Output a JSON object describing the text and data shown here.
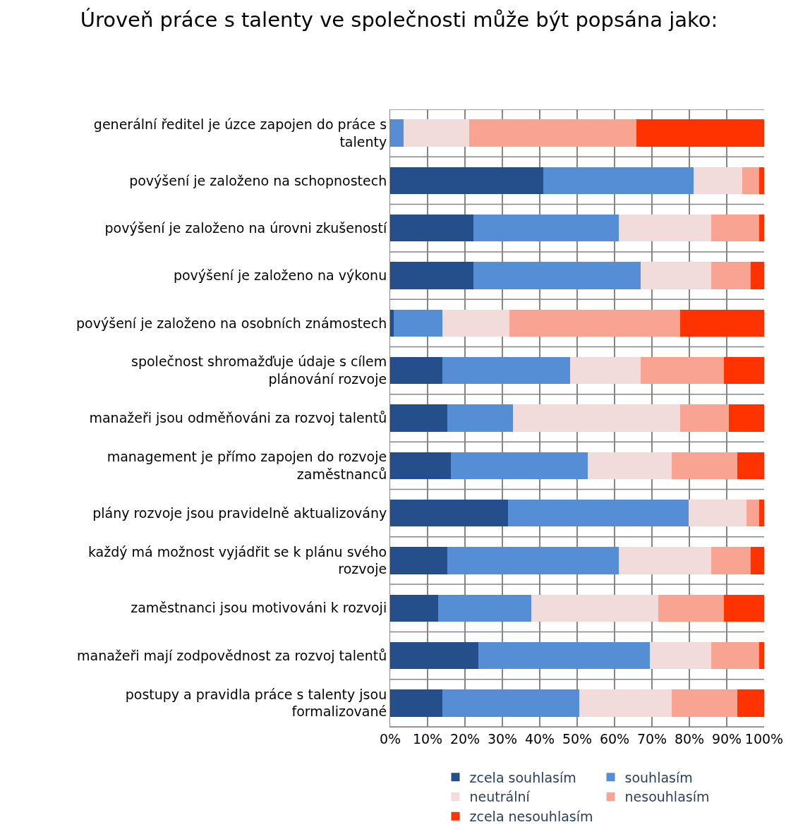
{
  "chart_data": {
    "type": "bar",
    "orientation": "horizontal",
    "stacked": true,
    "title": "Úroveň práce s talenty ve společnosti může být popsána jako:",
    "categories": [
      "generální ředitel je úzce zapojen do práce s talenty",
      "povýšení je založeno na schopnostech",
      "povýšení je založeno na úrovni zkušeností",
      "povýšení je založeno na výkonu",
      "povýšení je založeno na osobních známostech",
      "společnost shromažďuje údaje s cílem plánování rozvoje",
      "manažeři jsou odměňováni za rozvoj talentů",
      "management je přímo zapojen do rozvoje zaměstnanců",
      "plány rozvoje jsou pravidelně aktualizovány",
      "každý má možnost vyjádřit se k plánu svého rozvoje",
      "zaměstnanci jsou motivováni k rozvoji",
      "manažeři mají zodpovědnost za rozvoj talentů",
      "postupy a pravidla práce s talenty jsou formalizované"
    ],
    "series": [
      {
        "name": "zcela souhlasím",
        "color": "#254f8a",
        "values": [
          0,
          41,
          22.3,
          22.3,
          1,
          14,
          15.2,
          16.3,
          31.6,
          15.2,
          12.9,
          23.5,
          14
        ]
      },
      {
        "name": "souhlasím",
        "color": "#558ed5",
        "values": [
          3.5,
          40.1,
          38.8,
          44.6,
          13,
          34.2,
          17.7,
          36.5,
          48.3,
          45.9,
          24.8,
          45.9,
          36.5
        ]
      },
      {
        "name": "neutrální",
        "color": "#f2dcdb",
        "values": [
          17.6,
          13,
          24.7,
          18.9,
          17.8,
          18.7,
          44.6,
          22.4,
          15.4,
          24.7,
          34,
          16.4,
          24.7
        ]
      },
      {
        "name": "nesouhlasím",
        "color": "#f9a392",
        "values": [
          44.7,
          4.6,
          12.9,
          10.6,
          45.7,
          22.3,
          13.1,
          17.6,
          3.4,
          10.6,
          17.5,
          12.9,
          17.6
        ]
      },
      {
        "name": "zcela nesouhlasím",
        "color": "#ff3300",
        "values": [
          34.2,
          1.3,
          1.3,
          3.6,
          22.5,
          10.8,
          9.4,
          7.2,
          1.3,
          3.6,
          10.8,
          1.3,
          7.2
        ]
      }
    ],
    "xlim": [
      0,
      100
    ],
    "xticks": [
      {
        "value": 0,
        "label": "0%"
      },
      {
        "value": 10,
        "label": "10%"
      },
      {
        "value": 20,
        "label": "20%"
      },
      {
        "value": 30,
        "label": "30%"
      },
      {
        "value": 40,
        "label": "40%"
      },
      {
        "value": 50,
        "label": "50%"
      },
      {
        "value": 60,
        "label": "60%"
      },
      {
        "value": 70,
        "label": "70%"
      },
      {
        "value": 80,
        "label": "80%"
      },
      {
        "value": 90,
        "label": "90%"
      },
      {
        "value": 100,
        "label": "100%"
      }
    ],
    "grid": true,
    "legend": "bottom"
  }
}
